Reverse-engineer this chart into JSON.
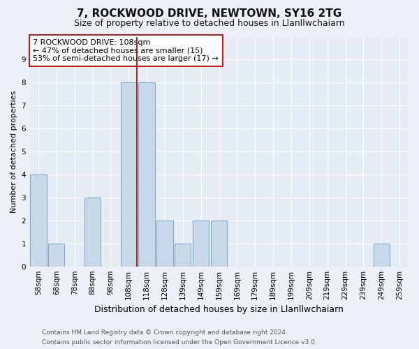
{
  "title": "7, ROCKWOOD DRIVE, NEWTOWN, SY16 2TG",
  "subtitle": "Size of property relative to detached houses in Llanllwchaiarn",
  "xlabel": "Distribution of detached houses by size in Llanllwchaiarn",
  "ylabel": "Number of detached properties",
  "categories": [
    "58sqm",
    "68sqm",
    "78sqm",
    "88sqm",
    "98sqm",
    "108sqm",
    "118sqm",
    "128sqm",
    "139sqm",
    "149sqm",
    "159sqm",
    "169sqm",
    "179sqm",
    "189sqm",
    "199sqm",
    "209sqm",
    "219sqm",
    "229sqm",
    "239sqm",
    "249sqm",
    "259sqm"
  ],
  "values": [
    4,
    1,
    0,
    3,
    0,
    8,
    8,
    2,
    1,
    2,
    2,
    0,
    0,
    0,
    0,
    0,
    0,
    0,
    0,
    1,
    0
  ],
  "bar_color": "#c9d9ea",
  "bar_edge_color": "#7aabcd",
  "highlight_index": 5,
  "highlight_line_color": "#aa0000",
  "annotation_text": "7 ROCKWOOD DRIVE: 108sqm\n← 47% of detached houses are smaller (15)\n53% of semi-detached houses are larger (17) →",
  "annotation_box_edge_color": "#cc0000",
  "ylim": [
    0,
    10
  ],
  "yticks": [
    0,
    1,
    2,
    3,
    4,
    5,
    6,
    7,
    8,
    9
  ],
  "footnote1": "Contains HM Land Registry data © Crown copyright and database right 2024.",
  "footnote2": "Contains public sector information licensed under the Open Government Licence v3.0.",
  "bg_color": "#edf1f7",
  "plot_bg_color": "#e6ecf4",
  "grid_color": "#ffffff",
  "title_fontsize": 11,
  "subtitle_fontsize": 9,
  "tick_fontsize": 7.5,
  "ylabel_fontsize": 8,
  "xlabel_fontsize": 9,
  "annot_fontsize": 8,
  "footnote_fontsize": 6.5
}
